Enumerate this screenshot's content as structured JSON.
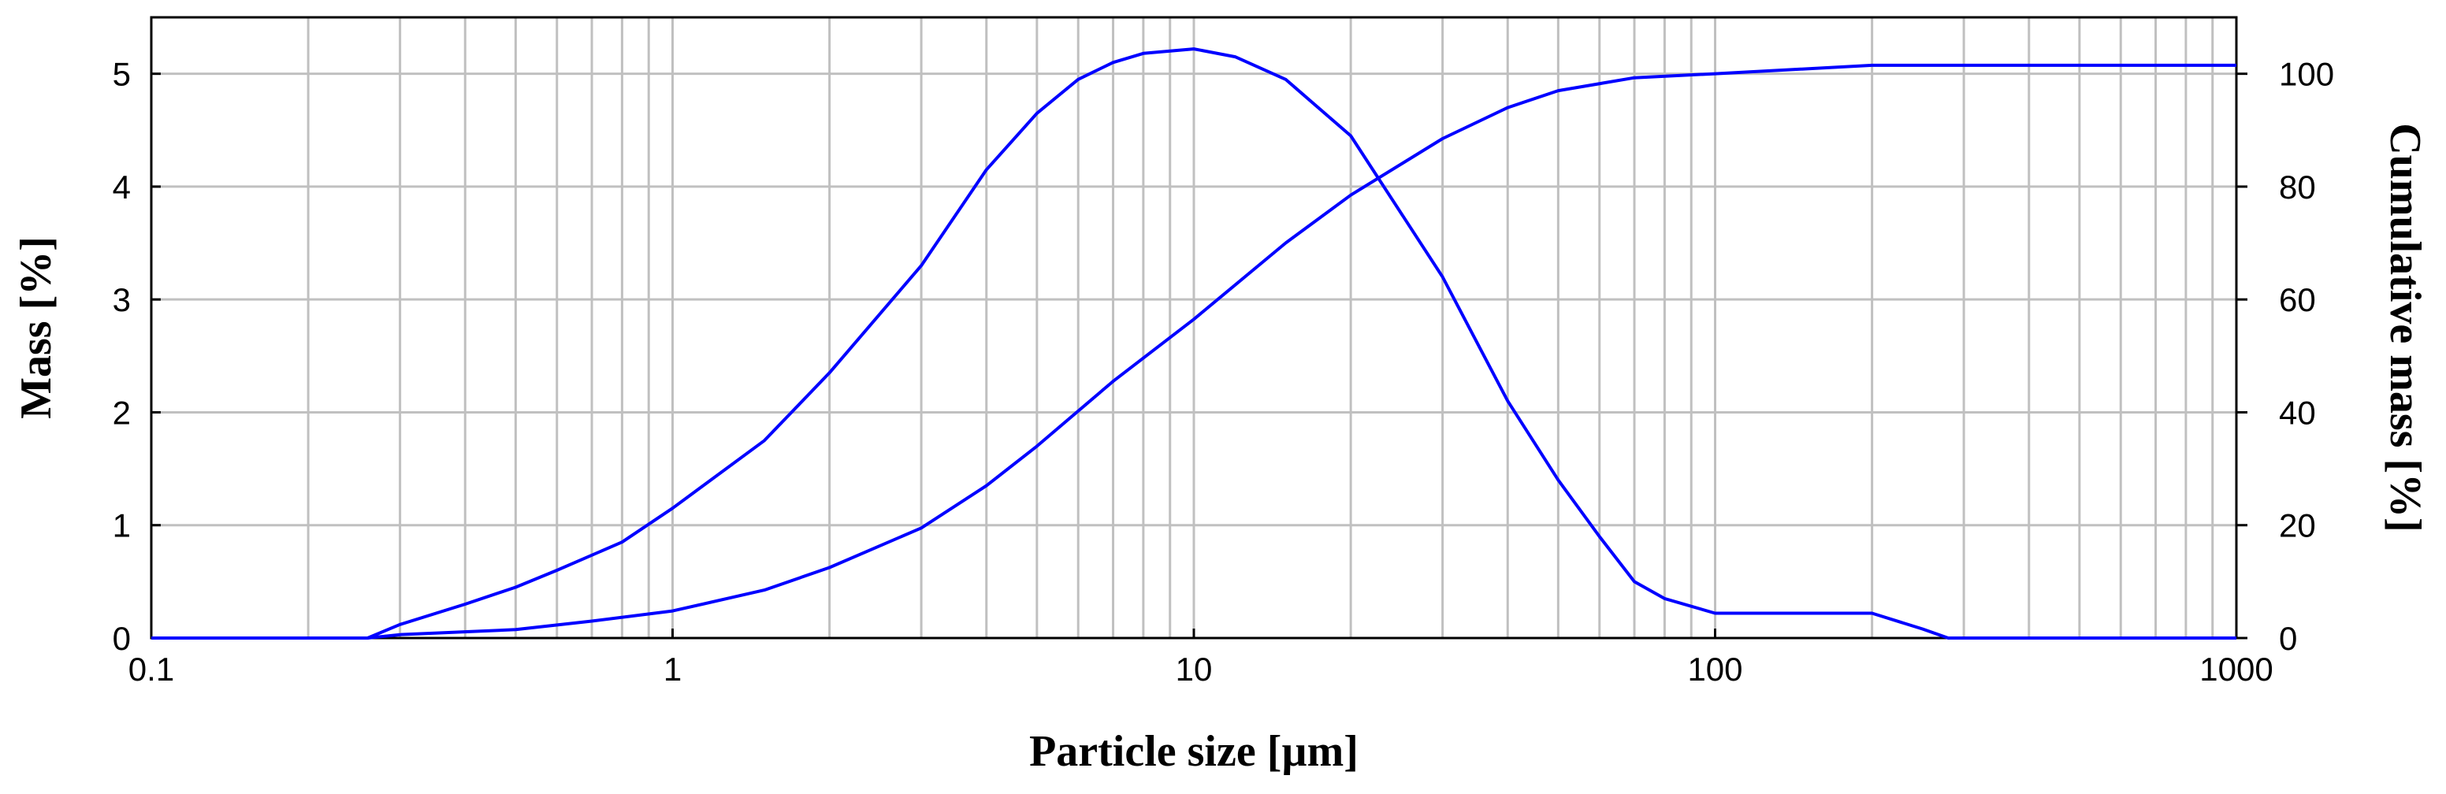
{
  "chart_data": {
    "type": "line",
    "title": "",
    "xlabel": "Particle size [µm]",
    "ylabel": "Mass [%]",
    "y2label": "Cumulative mass [%]",
    "xscale": "log",
    "xlim": [
      0.1,
      1000
    ],
    "ylim": [
      0,
      5.5
    ],
    "y2lim": [
      0,
      110
    ],
    "x_ticks": [
      {
        "value": 0.1,
        "label": "0.1"
      },
      {
        "value": 1,
        "label": "1"
      },
      {
        "value": 10,
        "label": "10"
      },
      {
        "value": 100,
        "label": "100"
      },
      {
        "value": 1000,
        "label": "1000"
      }
    ],
    "y_ticks": [
      {
        "value": 0,
        "label": "0"
      },
      {
        "value": 1,
        "label": "1"
      },
      {
        "value": 2,
        "label": "2"
      },
      {
        "value": 3,
        "label": "3"
      },
      {
        "value": 4,
        "label": "4"
      },
      {
        "value": 5,
        "label": "5"
      }
    ],
    "y2_ticks": [
      {
        "value": 0,
        "label": "0"
      },
      {
        "value": 20,
        "label": "20"
      },
      {
        "value": 40,
        "label": "40"
      },
      {
        "value": 60,
        "label": "60"
      },
      {
        "value": 80,
        "label": "80"
      },
      {
        "value": 100,
        "label": "100"
      }
    ],
    "grid": true,
    "legend": "none",
    "line_color": "#0000ff",
    "series": [
      {
        "axis": "left",
        "x": [
          0.1,
          0.26,
          0.3,
          0.4,
          0.5,
          0.6,
          0.8,
          1,
          1.5,
          2,
          3,
          4,
          5,
          6,
          7,
          8,
          10,
          12,
          15,
          20,
          30,
          40,
          50,
          60,
          70,
          80,
          100,
          120,
          150,
          200,
          250,
          280,
          1000
        ],
        "y": [
          0,
          0,
          0.12,
          0.3,
          0.45,
          0.6,
          0.85,
          1.15,
          1.75,
          2.35,
          3.3,
          4.15,
          4.65,
          4.95,
          5.1,
          5.18,
          5.22,
          5.15,
          4.95,
          4.45,
          3.2,
          2.1,
          1.4,
          0.9,
          0.5,
          0.35,
          0.22,
          0.22,
          0.22,
          0.22,
          0.08,
          0,
          0
        ]
      },
      {
        "axis": "right",
        "x": [
          0.1,
          0.26,
          0.3,
          0.5,
          0.7,
          1,
          1.5,
          2,
          3,
          4,
          5,
          7,
          10,
          15,
          20,
          30,
          40,
          50,
          70,
          100,
          200,
          1000
        ],
        "y": [
          0,
          0,
          0.6,
          1.5,
          3,
          4.8,
          8.5,
          12.5,
          19.5,
          27,
          34,
          45.5,
          56.5,
          70,
          78.5,
          88.5,
          94,
          97,
          99.3,
          100,
          101.5,
          101.5
        ]
      }
    ]
  }
}
